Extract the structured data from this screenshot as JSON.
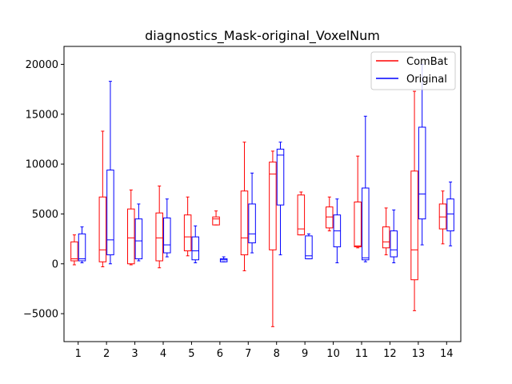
{
  "chart_data": {
    "type": "boxplot",
    "title": "diagnostics_Mask-original_VoxelNum",
    "xlabel": "",
    "ylabel": "",
    "ylim": [
      -7800,
      21800
    ],
    "yticks": [
      -5000,
      0,
      5000,
      10000,
      15000,
      20000
    ],
    "categories": [
      "1",
      "2",
      "3",
      "4",
      "5",
      "6",
      "7",
      "8",
      "9",
      "10",
      "11",
      "12",
      "13",
      "14"
    ],
    "grid": false,
    "legend_position": "top-right",
    "series": [
      {
        "name": "ComBat",
        "color": "#ff0000",
        "boxes": [
          {
            "whisker_low": -100,
            "q1": 300,
            "median": 500,
            "q3": 2200,
            "whisker_high": 2900
          },
          {
            "whisker_low": -300,
            "q1": 200,
            "median": 1400,
            "q3": 6700,
            "whisker_high": 13300
          },
          {
            "whisker_low": -100,
            "q1": 0,
            "median": 2600,
            "q3": 5500,
            "whisker_high": 7400
          },
          {
            "whisker_low": -400,
            "q1": 300,
            "median": 2600,
            "q3": 5100,
            "whisker_high": 7800
          },
          {
            "whisker_low": 800,
            "q1": 1300,
            "median": 2700,
            "q3": 4900,
            "whisker_high": 6700
          },
          {
            "whisker_low": 3900,
            "q1": 3900,
            "median": 4500,
            "q3": 4700,
            "whisker_high": 5300
          },
          {
            "whisker_low": -700,
            "q1": 900,
            "median": 2600,
            "q3": 7300,
            "whisker_high": 12200
          },
          {
            "whisker_low": -6300,
            "q1": 1400,
            "median": 9000,
            "q3": 10200,
            "whisker_high": 11300
          },
          {
            "whisker_low": 2900,
            "q1": 2900,
            "median": 3500,
            "q3": 6900,
            "whisker_high": 7200
          },
          {
            "whisker_low": 3300,
            "q1": 3600,
            "median": 4700,
            "q3": 5700,
            "whisker_high": 6700
          },
          {
            "whisker_low": 1600,
            "q1": 1700,
            "median": 1800,
            "q3": 6200,
            "whisker_high": 10800
          },
          {
            "whisker_low": 900,
            "q1": 1600,
            "median": 2200,
            "q3": 3700,
            "whisker_high": 5600
          },
          {
            "whisker_low": -4700,
            "q1": -1600,
            "median": 1400,
            "q3": 9300,
            "whisker_high": 17300
          },
          {
            "whisker_low": 2000,
            "q1": 3500,
            "median": 4700,
            "q3": 6000,
            "whisker_high": 7300
          }
        ]
      },
      {
        "name": "Original",
        "color": "#0000ff",
        "boxes": [
          {
            "whisker_low": 100,
            "q1": 300,
            "median": 500,
            "q3": 3000,
            "whisker_high": 3700
          },
          {
            "whisker_low": 0,
            "q1": 900,
            "median": 2400,
            "q3": 9400,
            "whisker_high": 18300
          },
          {
            "whisker_low": 300,
            "q1": 500,
            "median": 2300,
            "q3": 4500,
            "whisker_high": 6000
          },
          {
            "whisker_low": 700,
            "q1": 1100,
            "median": 1900,
            "q3": 4600,
            "whisker_high": 6500
          },
          {
            "whisker_low": 100,
            "q1": 400,
            "median": 1300,
            "q3": 2700,
            "whisker_high": 3800
          },
          {
            "whisker_low": 200,
            "q1": 200,
            "median": 400,
            "q3": 500,
            "whisker_high": 700
          },
          {
            "whisker_low": 1100,
            "q1": 2100,
            "median": 3000,
            "q3": 6000,
            "whisker_high": 9100
          },
          {
            "whisker_low": 900,
            "q1": 5900,
            "median": 10900,
            "q3": 11500,
            "whisker_high": 12200
          },
          {
            "whisker_low": 500,
            "q1": 500,
            "median": 800,
            "q3": 2800,
            "whisker_high": 3000
          },
          {
            "whisker_low": 100,
            "q1": 1700,
            "median": 3300,
            "q3": 4900,
            "whisker_high": 6500
          },
          {
            "whisker_low": 200,
            "q1": 400,
            "median": 600,
            "q3": 7600,
            "whisker_high": 14800
          },
          {
            "whisker_low": 100,
            "q1": 700,
            "median": 1400,
            "q3": 3300,
            "whisker_high": 5400
          },
          {
            "whisker_low": 1900,
            "q1": 4500,
            "median": 7000,
            "q3": 13700,
            "whisker_high": 20000
          },
          {
            "whisker_low": 1800,
            "q1": 3300,
            "median": 5000,
            "q3": 6500,
            "whisker_high": 8200
          }
        ]
      }
    ]
  }
}
